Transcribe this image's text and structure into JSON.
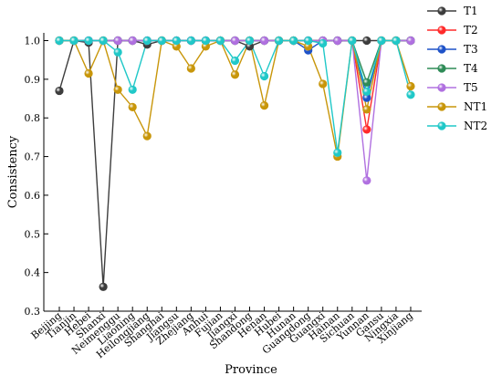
{
  "chart_data": {
    "type": "line",
    "xlabel": "Province",
    "ylabel": "Consistency",
    "ylim": [
      0.3,
      1.0
    ],
    "yticks": [
      "0.3",
      "0.4",
      "0.5",
      "0.6",
      "0.7",
      "0.8",
      "0.9",
      "1.0"
    ],
    "categories": [
      "Beijing",
      "Tianjin",
      "Hebei",
      "Shanxi",
      "Neimenggu",
      "Liaoning",
      "Heilongjiang",
      "Shanghai",
      "Jiangsu",
      "Zhejiang",
      "Anhui",
      "Fujian",
      "Jiangxi",
      "Shandong",
      "Henan",
      "Hubei",
      "Hunan",
      "Guangdong",
      "Guangxi",
      "Hainan",
      "Sichuan",
      "Yunnan",
      "Gansu",
      "Ningxia",
      "Xinjiang"
    ],
    "grid": false,
    "legend_position": "right",
    "series": [
      {
        "name": "T1",
        "color": "#3d3d3d",
        "values": [
          0.87,
          1.0,
          0.995,
          0.363,
          1.0,
          1.0,
          0.99,
          1.0,
          1.0,
          1.0,
          1.0,
          1.0,
          1.0,
          0.985,
          1.0,
          1.0,
          1.0,
          1.0,
          1.0,
          1.0,
          1.0,
          1.0,
          1.0,
          1.0,
          1.0
        ]
      },
      {
        "name": "T2",
        "color": "#ff2a2a",
        "values": [
          1.0,
          1.0,
          1.0,
          1.0,
          1.0,
          1.0,
          1.0,
          1.0,
          1.0,
          1.0,
          1.0,
          1.0,
          1.0,
          1.0,
          1.0,
          1.0,
          1.0,
          1.0,
          1.0,
          1.0,
          1.0,
          0.77,
          1.0,
          1.0,
          1.0
        ]
      },
      {
        "name": "T3",
        "color": "#1e52c8",
        "values": [
          1.0,
          1.0,
          1.0,
          1.0,
          1.0,
          1.0,
          1.0,
          1.0,
          1.0,
          1.0,
          1.0,
          1.0,
          1.0,
          1.0,
          1.0,
          1.0,
          1.0,
          0.975,
          1.0,
          1.0,
          1.0,
          0.852,
          1.0,
          1.0,
          1.0
        ]
      },
      {
        "name": "T4",
        "color": "#2e8b57",
        "values": [
          1.0,
          1.0,
          1.0,
          1.0,
          1.0,
          1.0,
          1.0,
          1.0,
          1.0,
          1.0,
          1.0,
          1.0,
          1.0,
          1.0,
          1.0,
          1.0,
          1.0,
          1.0,
          1.0,
          1.0,
          1.0,
          0.892,
          1.0,
          1.0,
          1.0
        ]
      },
      {
        "name": "T5",
        "color": "#b070e0",
        "values": [
          1.0,
          1.0,
          1.0,
          1.0,
          1.0,
          1.0,
          1.0,
          1.0,
          1.0,
          1.0,
          1.0,
          1.0,
          1.0,
          1.0,
          1.0,
          1.0,
          1.0,
          1.0,
          1.0,
          1.0,
          1.0,
          0.638,
          1.0,
          1.0,
          1.0
        ]
      },
      {
        "name": "NT1",
        "color": "#c8960a",
        "values": [
          1.0,
          1.0,
          0.915,
          1.0,
          0.873,
          0.828,
          0.753,
          1.0,
          0.985,
          0.928,
          0.985,
          1.0,
          0.912,
          1.0,
          0.832,
          1.0,
          1.0,
          0.985,
          0.888,
          0.7,
          1.0,
          0.822,
          1.0,
          1.0,
          0.882
        ]
      },
      {
        "name": "NT2",
        "color": "#20c8c8",
        "values": [
          1.0,
          1.0,
          1.0,
          1.0,
          0.97,
          0.873,
          1.0,
          1.0,
          1.0,
          1.0,
          1.0,
          1.0,
          0.948,
          1.0,
          0.908,
          1.0,
          1.0,
          1.0,
          0.993,
          0.71,
          1.0,
          0.868,
          1.0,
          1.0,
          0.86
        ]
      }
    ]
  }
}
